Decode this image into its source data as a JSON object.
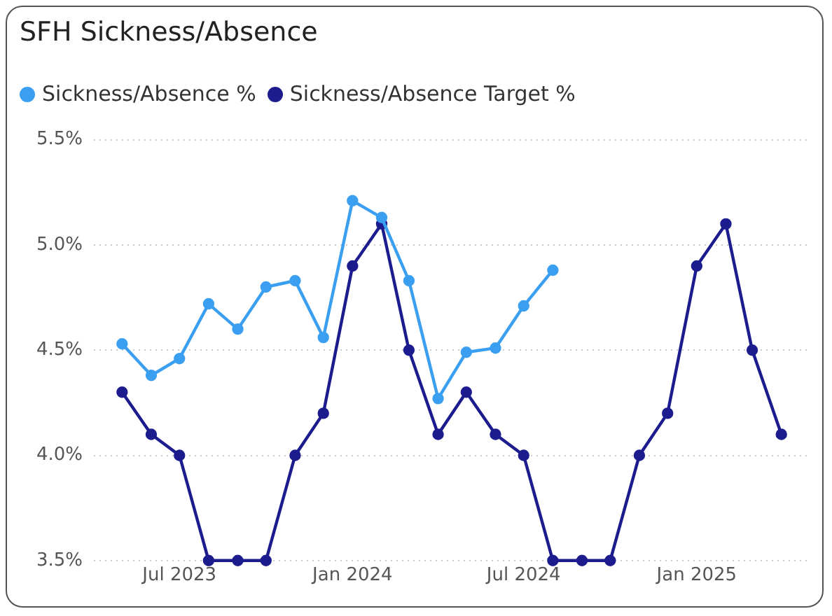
{
  "chart_data": {
    "type": "line",
    "title": "SFH Sickness/Absence",
    "x": [
      "2023-05",
      "2023-06",
      "2023-07",
      "2023-08",
      "2023-09",
      "2023-10",
      "2023-11",
      "2023-12",
      "2024-01",
      "2024-02",
      "2024-03",
      "2024-04",
      "2024-05",
      "2024-06",
      "2024-07",
      "2024-08",
      "2024-09",
      "2024-10",
      "2024-11",
      "2024-12",
      "2025-01",
      "2025-02",
      "2025-03",
      "2025-04"
    ],
    "series": [
      {
        "name": "Sickness/Absence %",
        "color": "#3a9ff0",
        "values": [
          4.53,
          4.38,
          4.46,
          4.72,
          4.6,
          4.8,
          4.83,
          4.56,
          5.21,
          5.13,
          4.83,
          4.27,
          4.49,
          4.51,
          4.71,
          4.88,
          null,
          null,
          null,
          null,
          null,
          null,
          null,
          null
        ]
      },
      {
        "name": "Sickness/Absence Target %",
        "color": "#1c1c8e",
        "values": [
          4.3,
          4.1,
          4.0,
          3.5,
          3.5,
          3.5,
          4.0,
          4.2,
          4.9,
          5.1,
          4.5,
          4.1,
          4.3,
          4.1,
          4.0,
          3.5,
          3.5,
          3.5,
          4.0,
          4.2,
          4.9,
          5.1,
          4.5,
          4.1
        ]
      }
    ],
    "xlim": [
      "2023-04",
      "2025-05"
    ],
    "xticks": [
      {
        "value": "2023-07",
        "label": "Jul 2023"
      },
      {
        "value": "2024-01",
        "label": "Jan 2024"
      },
      {
        "value": "2024-07",
        "label": "Jul 2024"
      },
      {
        "value": "2025-01",
        "label": "Jan 2025"
      }
    ],
    "ylim": [
      3.5,
      5.5
    ],
    "yticks": [
      {
        "value": 3.5,
        "label": "3.5%"
      },
      {
        "value": 4.0,
        "label": "4.0%"
      },
      {
        "value": 4.5,
        "label": "4.5%"
      },
      {
        "value": 5.0,
        "label": "5.0%"
      },
      {
        "value": 5.5,
        "label": "5.5%"
      }
    ],
    "grid": "y",
    "legend": "top left",
    "marker": "circle",
    "line_style": "solid"
  }
}
